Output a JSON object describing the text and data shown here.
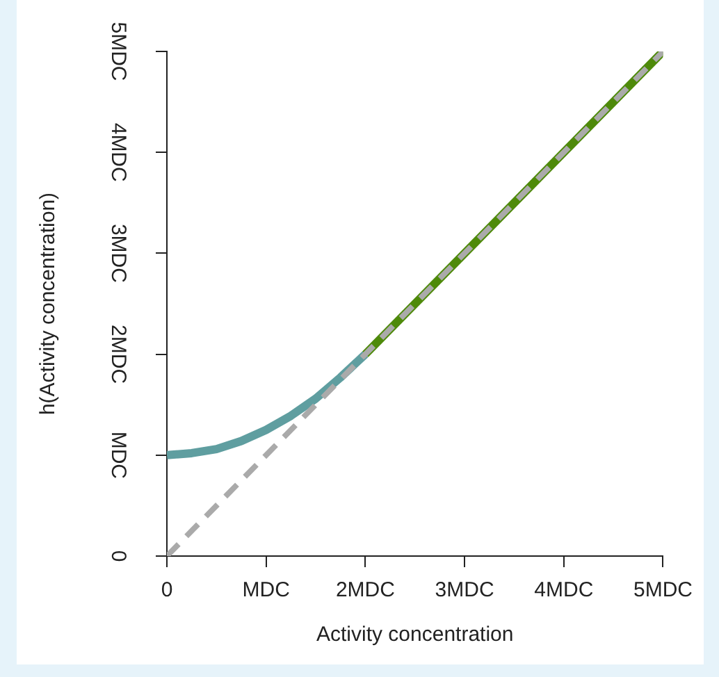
{
  "chart_data": {
    "type": "line",
    "xlabel": "Activity concentration",
    "ylabel": "h(Activity concentration)",
    "xlim": [
      0,
      5
    ],
    "ylim": [
      0,
      5
    ],
    "xticks": [
      0,
      {
        "value": 1,
        "label": "MDC"
      },
      {
        "value": 2,
        "label": "2MDC"
      },
      {
        "value": 3,
        "label": "3MDC"
      },
      {
        "value": 4,
        "label": "4MDC"
      },
      {
        "value": 5,
        "label": "5MDC"
      }
    ],
    "yticks": [
      0,
      {
        "value": 1,
        "label": "MDC"
      },
      {
        "value": 2,
        "label": "2MDC"
      },
      {
        "value": 3,
        "label": "3MDC"
      },
      {
        "value": 4,
        "label": "4MDC"
      },
      {
        "value": 5,
        "label": "5MDC"
      }
    ],
    "grid": false,
    "legend": false,
    "marker": "none",
    "series": [
      {
        "color": "#5f9ea0",
        "line_style": "solid",
        "x": [
          0,
          0.25,
          0.5,
          0.75,
          1,
          1.25,
          1.5,
          1.75,
          2
        ],
        "values": [
          1,
          1.02,
          1.06,
          1.14,
          1.25,
          1.39,
          1.56,
          1.77,
          2
        ]
      },
      {
        "color": "#4e8a0a",
        "line_style": "solid",
        "x": [
          2,
          5
        ],
        "values": [
          2,
          5
        ]
      },
      {
        "color": "#aaaaaa",
        "line_style": "dashed",
        "x": [
          0,
          5
        ],
        "values": [
          0,
          5
        ]
      }
    ]
  }
}
